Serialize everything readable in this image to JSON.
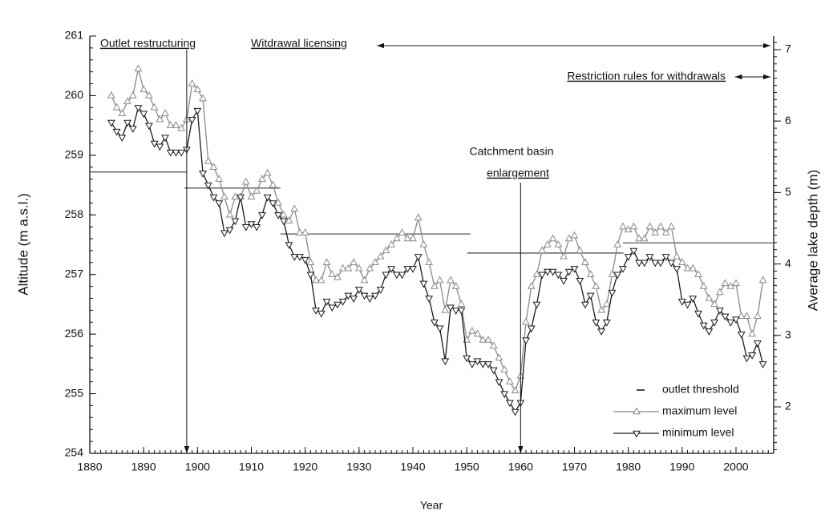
{
  "chart_data": {
    "type": "line",
    "xlabel": "Year",
    "ylabel": "Altitude (m a.s.l.)",
    "y2label": "Average lake depth (m)",
    "xlim": [
      1880,
      2007
    ],
    "xticks": [
      1880,
      1890,
      1900,
      1910,
      1920,
      1930,
      1940,
      1950,
      1960,
      1970,
      1980,
      1990,
      2000
    ],
    "ylim": [
      254,
      261
    ],
    "yticks": [
      254,
      255,
      256,
      257,
      258,
      259,
      260,
      261
    ],
    "y2lim": [
      1.35,
      7.19
    ],
    "y2ticks": [
      2,
      3,
      4,
      5,
      6,
      7
    ],
    "legend": "lower right",
    "x": [
      1884,
      1885,
      1886,
      1887,
      1888,
      1889,
      1890,
      1891,
      1892,
      1893,
      1894,
      1895,
      1896,
      1897,
      1898,
      1899,
      1900,
      1901,
      1902,
      1903,
      1904,
      1905,
      1906,
      1907,
      1908,
      1909,
      1910,
      1911,
      1912,
      1913,
      1914,
      1915,
      1916,
      1917,
      1918,
      1919,
      1920,
      1921,
      1922,
      1923,
      1924,
      1925,
      1926,
      1927,
      1928,
      1929,
      1930,
      1931,
      1932,
      1933,
      1934,
      1935,
      1936,
      1937,
      1938,
      1939,
      1940,
      1941,
      1942,
      1943,
      1944,
      1945,
      1946,
      1947,
      1948,
      1949,
      1950,
      1951,
      1952,
      1953,
      1954,
      1955,
      1956,
      1957,
      1958,
      1959,
      1960,
      1961,
      1962,
      1963,
      1964,
      1965,
      1966,
      1967,
      1968,
      1969,
      1970,
      1971,
      1972,
      1973,
      1974,
      1975,
      1976,
      1977,
      1978,
      1979,
      1980,
      1981,
      1982,
      1983,
      1984,
      1985,
      1986,
      1987,
      1988,
      1989,
      1990,
      1991,
      1992,
      1993,
      1994,
      1995,
      1996,
      1997,
      1998,
      1999,
      2000,
      2001,
      2002,
      2003,
      2004,
      2005
    ],
    "series": [
      {
        "name": "maximum level",
        "color": "#8a8a8a",
        "marker": "triangle-up",
        "values": [
          260.0,
          259.8,
          259.7,
          259.9,
          260.0,
          260.45,
          260.1,
          260.0,
          259.8,
          259.6,
          259.7,
          259.5,
          259.5,
          259.45,
          259.6,
          260.2,
          260.1,
          259.95,
          258.9,
          258.8,
          258.6,
          258.3,
          258.0,
          258.3,
          258.3,
          258.55,
          258.3,
          258.4,
          258.6,
          258.7,
          258.5,
          258.2,
          258.0,
          257.9,
          258.1,
          257.7,
          257.7,
          257.2,
          256.9,
          256.9,
          257.2,
          257.0,
          256.95,
          257.1,
          257.1,
          257.2,
          257.1,
          256.9,
          257.1,
          257.2,
          257.3,
          257.4,
          257.5,
          257.6,
          257.7,
          257.6,
          257.6,
          257.95,
          257.5,
          257.2,
          256.8,
          256.9,
          256.4,
          256.9,
          256.8,
          256.5,
          255.9,
          256.05,
          256.0,
          255.9,
          255.9,
          255.8,
          255.6,
          255.4,
          255.2,
          255.05,
          255.3,
          256.2,
          256.8,
          257.0,
          257.4,
          257.5,
          257.6,
          257.5,
          257.3,
          257.6,
          257.65,
          257.4,
          257.2,
          257.0,
          256.8,
          256.4,
          256.5,
          257.0,
          257.5,
          257.8,
          257.75,
          257.8,
          257.6,
          257.6,
          257.8,
          257.7,
          257.8,
          257.7,
          257.8,
          257.3,
          257.2,
          257.1,
          257.1,
          257.0,
          256.8,
          256.6,
          256.5,
          256.7,
          256.85,
          256.8,
          256.85,
          256.3,
          256.3,
          256.0,
          256.3,
          256.9
        ]
      },
      {
        "name": "minimum level",
        "color": "#1a1a1a",
        "marker": "triangle-down",
        "values": [
          259.55,
          259.4,
          259.3,
          259.55,
          259.45,
          259.8,
          259.7,
          259.5,
          259.2,
          259.15,
          259.3,
          259.05,
          259.05,
          259.05,
          259.1,
          259.6,
          259.75,
          258.7,
          258.5,
          258.3,
          258.2,
          257.7,
          257.75,
          257.9,
          258.3,
          257.8,
          257.85,
          257.8,
          258.0,
          258.3,
          258.2,
          258.0,
          257.9,
          257.5,
          257.3,
          257.3,
          257.25,
          257.0,
          256.4,
          256.35,
          256.55,
          256.45,
          256.5,
          256.55,
          256.65,
          256.6,
          256.75,
          256.65,
          256.6,
          256.65,
          256.75,
          257.0,
          257.1,
          257.0,
          257.0,
          257.1,
          257.1,
          257.3,
          256.85,
          256.6,
          256.2,
          256.1,
          255.55,
          256.45,
          256.4,
          256.4,
          255.6,
          255.5,
          255.55,
          255.5,
          255.5,
          255.4,
          255.2,
          255.0,
          254.85,
          254.7,
          254.85,
          255.9,
          256.1,
          256.5,
          257.0,
          257.05,
          257.05,
          257.0,
          256.9,
          257.05,
          257.1,
          256.9,
          256.5,
          256.65,
          256.2,
          256.05,
          256.2,
          256.7,
          257.0,
          257.1,
          257.3,
          257.4,
          257.2,
          257.2,
          257.3,
          257.2,
          257.2,
          257.3,
          257.2,
          257.1,
          256.55,
          256.5,
          256.6,
          256.35,
          256.15,
          256.05,
          256.2,
          256.4,
          256.3,
          256.2,
          256.25,
          256.0,
          255.6,
          255.65,
          255.85,
          255.5
        ]
      }
    ],
    "thresholds": {
      "name": "outlet threshold",
      "color": "#555555",
      "segments": [
        {
          "x": [
            1880,
            1898
          ],
          "value": 258.72
        },
        {
          "x": [
            1897.6,
            1915.4
          ],
          "value": 258.45
        },
        {
          "x": [
            1915.4,
            1950.7
          ],
          "value": 257.68
        },
        {
          "x": [
            1950.1,
            1979.1
          ],
          "value": 257.36
        },
        {
          "x": [
            1979,
            2007
          ],
          "value": 257.53
        }
      ]
    },
    "annotations": [
      {
        "text": [
          "Outlet restructuring"
        ],
        "x": 1898,
        "arrow": "down"
      },
      {
        "text": [
          "Witdrawal licensing"
        ],
        "x": [
          1933.3,
          2006.4
        ],
        "arrow": "both"
      },
      {
        "text": [
          "Restriction rules for withdrawals"
        ],
        "x": [
          1999.8,
          2006.4
        ],
        "arrow": "both"
      },
      {
        "text": [
          "Catchment basin",
          "enlargement"
        ],
        "x": 1960,
        "arrow": "down"
      }
    ]
  }
}
